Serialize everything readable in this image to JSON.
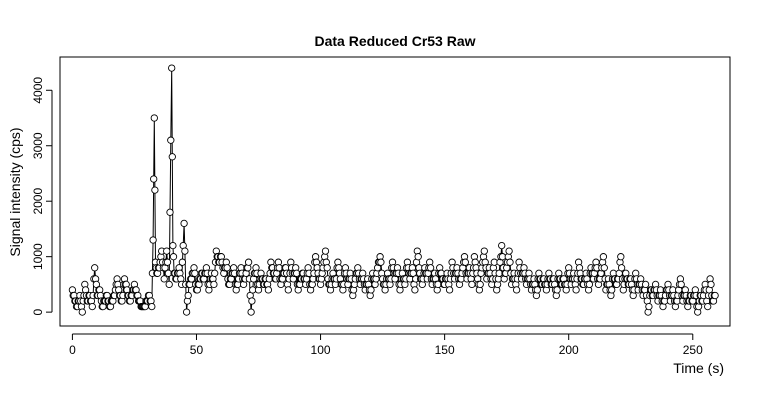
{
  "chart_data": {
    "type": "line",
    "title": "Data Reduced Cr53 Raw",
    "xlabel": "Time (s)",
    "ylabel": "Signal intensity (cps)",
    "xlim": [
      -5,
      265
    ],
    "ylim": [
      -250,
      4600
    ],
    "xticks": [
      0,
      50,
      100,
      150,
      200,
      250
    ],
    "yticks": [
      0,
      1000,
      2000,
      3000,
      4000
    ],
    "grid": false,
    "markers": "open-circle",
    "sampling_interval_s": 0.33,
    "points": [
      [
        0,
        400
      ],
      [
        1,
        200
      ],
      [
        2,
        100
      ],
      [
        3,
        300
      ],
      [
        4,
        0
      ],
      [
        5,
        500
      ],
      [
        6,
        200
      ],
      [
        7,
        300
      ],
      [
        8,
        100
      ],
      [
        9,
        800
      ],
      [
        10,
        300
      ],
      [
        11,
        400
      ],
      [
        12,
        100
      ],
      [
        13,
        200
      ],
      [
        14,
        300
      ],
      [
        15,
        100
      ],
      [
        16,
        200
      ],
      [
        17,
        300
      ],
      [
        18,
        600
      ],
      [
        19,
        300
      ],
      [
        20,
        200
      ],
      [
        21,
        600
      ],
      [
        22,
        400
      ],
      [
        23,
        200
      ],
      [
        24,
        300
      ],
      [
        25,
        500
      ],
      [
        26,
        300
      ],
      [
        27,
        200
      ],
      [
        28,
        100
      ],
      [
        29,
        100
      ],
      [
        30,
        200
      ],
      [
        31,
        300
      ],
      [
        32,
        100
      ],
      [
        32.5,
        1300
      ],
      [
        33,
        3500
      ],
      [
        33.5,
        900
      ],
      [
        34,
        700
      ],
      [
        35,
        800
      ],
      [
        36,
        1100
      ],
      [
        37,
        600
      ],
      [
        38,
        1100
      ],
      [
        39,
        500
      ],
      [
        40,
        4400
      ],
      [
        40.5,
        1200
      ],
      [
        41,
        700
      ],
      [
        42,
        600
      ],
      [
        43,
        800
      ],
      [
        44,
        500
      ],
      [
        45,
        1600
      ],
      [
        46,
        0
      ],
      [
        47,
        500
      ],
      [
        48,
        600
      ],
      [
        49,
        800
      ],
      [
        50,
        400
      ],
      [
        51,
        500
      ],
      [
        52,
        700
      ],
      [
        53,
        600
      ],
      [
        54,
        800
      ],
      [
        55,
        400
      ],
      [
        56,
        700
      ],
      [
        57,
        500
      ],
      [
        58,
        1100
      ],
      [
        59,
        900
      ],
      [
        60,
        1000
      ],
      [
        61,
        700
      ],
      [
        62,
        900
      ],
      [
        63,
        500
      ],
      [
        64,
        600
      ],
      [
        65,
        800
      ],
      [
        66,
        400
      ],
      [
        67,
        600
      ],
      [
        68,
        800
      ],
      [
        69,
        500
      ],
      [
        70,
        700
      ],
      [
        71,
        900
      ],
      [
        72,
        0
      ],
      [
        73,
        600
      ],
      [
        74,
        800
      ],
      [
        75,
        400
      ],
      [
        76,
        700
      ],
      [
        77,
        500
      ],
      [
        78,
        600
      ],
      [
        79,
        400
      ],
      [
        80,
        900
      ],
      [
        81,
        700
      ],
      [
        82,
        600
      ],
      [
        83,
        900
      ],
      [
        84,
        500
      ],
      [
        85,
        700
      ],
      [
        86,
        800
      ],
      [
        87,
        400
      ],
      [
        88,
        900
      ],
      [
        89,
        600
      ],
      [
        90,
        800
      ],
      [
        91,
        400
      ],
      [
        92,
        600
      ],
      [
        93,
        700
      ],
      [
        94,
        500
      ],
      [
        95,
        800
      ],
      [
        96,
        400
      ],
      [
        97,
        600
      ],
      [
        98,
        1000
      ],
      [
        99,
        700
      ],
      [
        100,
        500
      ],
      [
        101,
        800
      ],
      [
        102,
        1100
      ],
      [
        103,
        600
      ],
      [
        104,
        400
      ],
      [
        105,
        700
      ],
      [
        106,
        500
      ],
      [
        107,
        900
      ],
      [
        108,
        600
      ],
      [
        109,
        400
      ],
      [
        110,
        800
      ],
      [
        111,
        500
      ],
      [
        112,
        700
      ],
      [
        113,
        300
      ],
      [
        114,
        600
      ],
      [
        115,
        800
      ],
      [
        116,
        500
      ],
      [
        117,
        700
      ],
      [
        118,
        400
      ],
      [
        119,
        600
      ],
      [
        120,
        300
      ],
      [
        121,
        700
      ],
      [
        122,
        500
      ],
      [
        123,
        800
      ],
      [
        124,
        1000
      ],
      [
        125,
        600
      ],
      [
        126,
        400
      ],
      [
        127,
        700
      ],
      [
        128,
        500
      ],
      [
        129,
        900
      ],
      [
        130,
        600
      ],
      [
        131,
        800
      ],
      [
        132,
        400
      ],
      [
        133,
        700
      ],
      [
        134,
        500
      ],
      [
        135,
        900
      ],
      [
        136,
        600
      ],
      [
        137,
        800
      ],
      [
        138,
        400
      ],
      [
        139,
        1100
      ],
      [
        140,
        700
      ],
      [
        141,
        500
      ],
      [
        142,
        800
      ],
      [
        143,
        600
      ],
      [
        144,
        900
      ],
      [
        145,
        500
      ],
      [
        146,
        700
      ],
      [
        147,
        400
      ],
      [
        148,
        800
      ],
      [
        149,
        600
      ],
      [
        150,
        500
      ],
      [
        151,
        700
      ],
      [
        152,
        400
      ],
      [
        153,
        900
      ],
      [
        154,
        600
      ],
      [
        155,
        800
      ],
      [
        156,
        500
      ],
      [
        157,
        700
      ],
      [
        158,
        1000
      ],
      [
        159,
        600
      ],
      [
        160,
        800
      ],
      [
        161,
        500
      ],
      [
        162,
        1000
      ],
      [
        163,
        700
      ],
      [
        164,
        400
      ],
      [
        165,
        800
      ],
      [
        166,
        1100
      ],
      [
        167,
        600
      ],
      [
        168,
        800
      ],
      [
        169,
        500
      ],
      [
        170,
        900
      ],
      [
        171,
        400
      ],
      [
        172,
        700
      ],
      [
        173,
        1200
      ],
      [
        174,
        600
      ],
      [
        175,
        800
      ],
      [
        176,
        1100
      ],
      [
        177,
        500
      ],
      [
        178,
        700
      ],
      [
        179,
        400
      ],
      [
        180,
        900
      ],
      [
        181,
        600
      ],
      [
        182,
        800
      ],
      [
        183,
        500
      ],
      [
        184,
        700
      ],
      [
        185,
        400
      ],
      [
        186,
        600
      ],
      [
        187,
        300
      ],
      [
        188,
        700
      ],
      [
        189,
        500
      ],
      [
        190,
        600
      ],
      [
        191,
        400
      ],
      [
        192,
        700
      ],
      [
        193,
        500
      ],
      [
        194,
        600
      ],
      [
        195,
        300
      ],
      [
        196,
        700
      ],
      [
        197,
        500
      ],
      [
        198,
        600
      ],
      [
        199,
        400
      ],
      [
        200,
        800
      ],
      [
        201,
        500
      ],
      [
        202,
        700
      ],
      [
        203,
        400
      ],
      [
        204,
        900
      ],
      [
        205,
        600
      ],
      [
        206,
        500
      ],
      [
        207,
        700
      ],
      [
        208,
        400
      ],
      [
        209,
        800
      ],
      [
        210,
        600
      ],
      [
        211,
        900
      ],
      [
        212,
        500
      ],
      [
        213,
        700
      ],
      [
        214,
        1000
      ],
      [
        215,
        400
      ],
      [
        216,
        600
      ],
      [
        217,
        300
      ],
      [
        218,
        700
      ],
      [
        219,
        500
      ],
      [
        220,
        600
      ],
      [
        221,
        1000
      ],
      [
        222,
        400
      ],
      [
        223,
        700
      ],
      [
        224,
        500
      ],
      [
        225,
        600
      ],
      [
        226,
        300
      ],
      [
        227,
        700
      ],
      [
        228,
        400
      ],
      [
        229,
        600
      ],
      [
        230,
        300
      ],
      [
        231,
        500
      ],
      [
        232,
        0
      ],
      [
        233,
        400
      ],
      [
        234,
        300
      ],
      [
        235,
        500
      ],
      [
        236,
        200
      ],
      [
        237,
        400
      ],
      [
        238,
        100
      ],
      [
        239,
        300
      ],
      [
        240,
        500
      ],
      [
        241,
        200
      ],
      [
        242,
        400
      ],
      [
        243,
        100
      ],
      [
        244,
        300
      ],
      [
        245,
        600
      ],
      [
        246,
        200
      ],
      [
        247,
        400
      ],
      [
        248,
        100
      ],
      [
        249,
        300
      ],
      [
        250,
        200
      ],
      [
        251,
        400
      ],
      [
        252,
        0
      ],
      [
        253,
        300
      ],
      [
        254,
        200
      ],
      [
        255,
        500
      ],
      [
        256,
        100
      ],
      [
        257,
        600
      ],
      [
        258,
        200
      ],
      [
        259,
        300
      ]
    ]
  }
}
